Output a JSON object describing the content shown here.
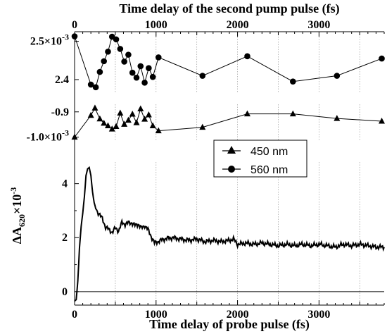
{
  "chart_data": [
    {
      "type": "scatter",
      "panel": "top",
      "x_axis_position": "top",
      "xlabel": "Time delay of the second pump pulse (fs)",
      "xlim": [
        0,
        3800
      ],
      "xticks": [
        0,
        1000,
        2000,
        3000
      ],
      "xtick_labels": [
        "0",
        "1000",
        "2000",
        "3000"
      ],
      "ylim": [
        0.002365,
        0.002525
      ],
      "yticks": [
        0.0024,
        0.0025
      ],
      "ytick_labels": [
        "2.4",
        "2.5"
      ],
      "ytick_multiplier_label": "×10",
      "ytick_multiplier_exponent": "-3",
      "grid": true,
      "series": [
        {
          "name": "560 nm",
          "marker": "circle",
          "x": [
            0,
            200,
            260,
            310,
            360,
            410,
            460,
            510,
            560,
            610,
            660,
            710,
            760,
            810,
            860,
            910,
            960,
            1030,
            1570,
            2120,
            2680,
            3220,
            3770
          ],
          "y": [
            0.002513,
            0.002387,
            0.00238,
            0.00242,
            0.002448,
            0.002473,
            0.002512,
            0.002505,
            0.00248,
            0.002447,
            0.002465,
            0.002418,
            0.002405,
            0.002435,
            0.002392,
            0.00243,
            0.002407,
            0.002458,
            0.00241,
            0.002461,
            0.002395,
            0.00241,
            0.002455
          ]
        }
      ]
    },
    {
      "type": "scatter",
      "panel": "middle",
      "ylim": [
        -0.001015,
        -0.00087
      ],
      "yticks": [
        -0.0009,
        -0.001
      ],
      "ytick_labels": [
        "-0.9",
        "-1.0"
      ],
      "ytick_multiplier_label": "×10",
      "ytick_multiplier_exponent": "-3",
      "grid": true,
      "series": [
        {
          "name": "450 nm",
          "marker": "triangle",
          "x": [
            0,
            200,
            250,
            310,
            360,
            410,
            460,
            510,
            560,
            610,
            660,
            710,
            760,
            810,
            860,
            910,
            960,
            1030,
            1570,
            2120,
            2680,
            3220,
            3770
          ],
          "y": [
            -0.001,
            -0.000914,
            -0.000885,
            -0.000928,
            -0.000945,
            -0.000955,
            -0.000968,
            -0.000958,
            -0.000905,
            -0.000949,
            -0.000933,
            -0.000909,
            -0.000943,
            -0.000888,
            -0.000929,
            -0.000912,
            -0.000955,
            -0.000975,
            -0.000961,
            -0.000908,
            -0.000908,
            -0.000926,
            -0.000937
          ]
        }
      ]
    },
    {
      "type": "line",
      "panel": "bottom",
      "xlabel": "Time delay of probe pulse (fs)",
      "ylabel": "ΔA",
      "ylabel_subscript": "620",
      "ylabel_suffix": "×10",
      "ylabel_exponent": "-3",
      "xlim": [
        0,
        3800
      ],
      "ylim": [
        -0.5,
        4.8
      ],
      "xticks": [
        0,
        1000,
        2000,
        3000
      ],
      "xtick_labels": [
        "0",
        "1000",
        "2000",
        "3000"
      ],
      "yticks": [
        0,
        2,
        4
      ],
      "ytick_labels": [
        "0",
        "2",
        "4"
      ],
      "zero_line": true,
      "grid": true,
      "series": [
        {
          "name": "",
          "x": [
            0,
            20,
            40,
            60,
            80,
            100,
            120,
            140,
            160,
            180,
            200,
            220,
            240,
            260,
            280,
            300,
            340,
            380,
            420,
            460,
            500,
            540,
            580,
            620,
            660,
            700,
            740,
            780,
            820,
            860,
            900,
            940,
            980,
            1020,
            1100,
            1200,
            1300,
            1400,
            1500,
            1600,
            1700,
            1800,
            1900,
            1950,
            2000,
            2100,
            2200,
            2300,
            2400,
            2500,
            2600,
            2700,
            2800,
            2900,
            3000,
            3100,
            3200,
            3300,
            3400,
            3500,
            3600,
            3700,
            3800
          ],
          "y": [
            -0.35,
            -0.3,
            0.4,
            1.6,
            2.4,
            2.9,
            3.5,
            4.3,
            4.55,
            4.6,
            4.3,
            3.7,
            3.3,
            3.1,
            2.95,
            2.9,
            2.7,
            2.4,
            2.3,
            2.2,
            2.35,
            2.25,
            2.55,
            2.5,
            2.55,
            2.55,
            2.45,
            2.5,
            2.35,
            2.45,
            2.3,
            2.05,
            1.8,
            1.85,
            1.95,
            2.0,
            1.95,
            1.9,
            1.95,
            1.85,
            1.9,
            1.85,
            1.9,
            1.95,
            1.75,
            1.8,
            1.75,
            1.8,
            1.75,
            1.7,
            1.75,
            1.7,
            1.75,
            1.7,
            1.75,
            1.7,
            1.65,
            1.75,
            1.7,
            1.75,
            1.7,
            1.65,
            1.65
          ]
        }
      ]
    }
  ],
  "legend": {
    "placement": "upper-right of bottom panel",
    "entries": [
      {
        "label": "450 nm",
        "marker": "triangle"
      },
      {
        "label": "560 nm",
        "marker": "circle"
      }
    ]
  }
}
